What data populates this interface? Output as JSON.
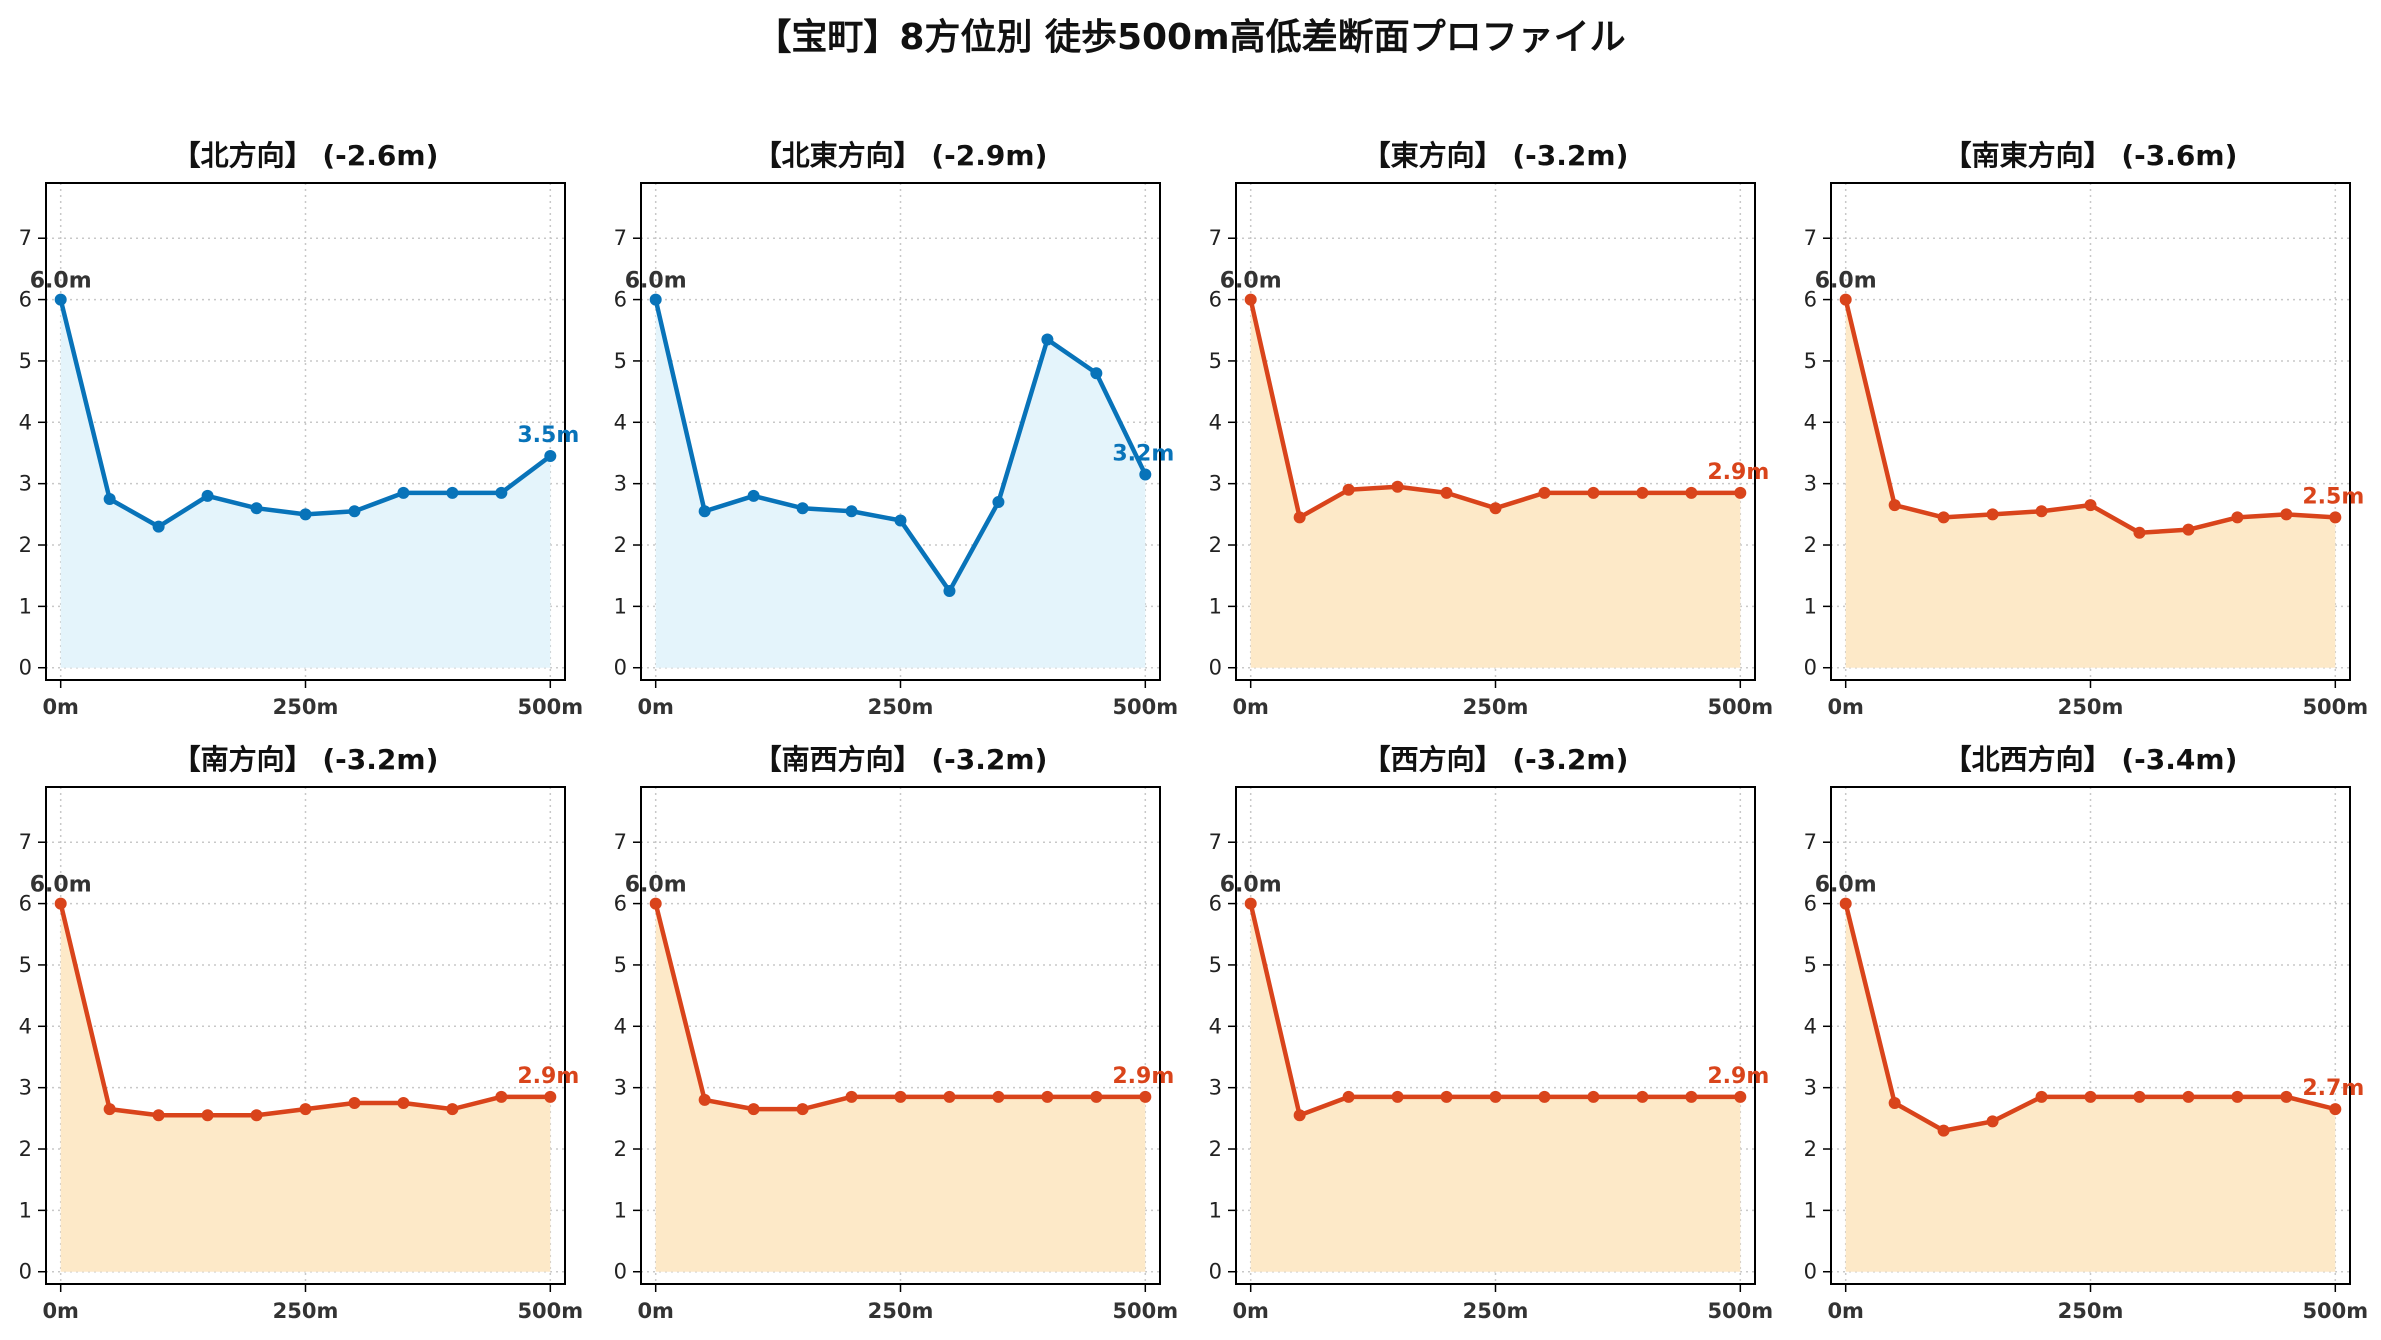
{
  "title": "【宝町】8方位別 徒歩500m高低差断面プロファイル",
  "colors": {
    "uphill_line": "#0873b9",
    "uphill_fill": "#e4f4fb",
    "downhill_line": "#d9441b",
    "downhill_fill": "#fde9c8",
    "start_label": "#333333",
    "grid": "#c8c8c8"
  },
  "chart_data": [
    {
      "type": "area",
      "title": "【北方向】 (-2.6m)",
      "color_scheme": "blue",
      "x": [
        0,
        50,
        100,
        150,
        200,
        250,
        300,
        350,
        400,
        450,
        500
      ],
      "y": [
        6.0,
        2.75,
        2.3,
        2.8,
        2.6,
        2.5,
        2.55,
        2.85,
        2.85,
        2.85,
        3.45
      ],
      "start_label": "6.0m",
      "end_label": "3.5m",
      "xlim": [
        -15,
        515
      ],
      "ylim": [
        -0.2,
        7.9
      ],
      "xticks": [
        "0m",
        "250m",
        "500m"
      ],
      "yticks": [
        0,
        1,
        2,
        3,
        4,
        5,
        6,
        7
      ],
      "grid": true
    },
    {
      "type": "area",
      "title": "【北東方向】 (-2.9m)",
      "color_scheme": "blue",
      "x": [
        0,
        50,
        100,
        150,
        200,
        250,
        300,
        350,
        400,
        450,
        500
      ],
      "y": [
        6.0,
        2.55,
        2.8,
        2.6,
        2.55,
        2.4,
        1.25,
        2.7,
        5.35,
        4.8,
        3.15
      ],
      "start_label": "6.0m",
      "end_label": "3.2m",
      "xlim": [
        -15,
        515
      ],
      "ylim": [
        -0.2,
        7.9
      ],
      "xticks": [
        "0m",
        "250m",
        "500m"
      ],
      "yticks": [
        0,
        1,
        2,
        3,
        4,
        5,
        6,
        7
      ],
      "grid": true
    },
    {
      "type": "area",
      "title": "【東方向】 (-3.2m)",
      "color_scheme": "orange",
      "x": [
        0,
        50,
        100,
        150,
        200,
        250,
        300,
        350,
        400,
        450,
        500
      ],
      "y": [
        6.0,
        2.45,
        2.9,
        2.95,
        2.85,
        2.6,
        2.85,
        2.85,
        2.85,
        2.85,
        2.85
      ],
      "start_label": "6.0m",
      "end_label": "2.9m",
      "xlim": [
        -15,
        515
      ],
      "ylim": [
        -0.2,
        7.9
      ],
      "xticks": [
        "0m",
        "250m",
        "500m"
      ],
      "yticks": [
        0,
        1,
        2,
        3,
        4,
        5,
        6,
        7
      ],
      "grid": true
    },
    {
      "type": "area",
      "title": "【南東方向】 (-3.6m)",
      "color_scheme": "orange",
      "x": [
        0,
        50,
        100,
        150,
        200,
        250,
        300,
        350,
        400,
        450,
        500
      ],
      "y": [
        6.0,
        2.65,
        2.45,
        2.5,
        2.55,
        2.65,
        2.2,
        2.25,
        2.45,
        2.5,
        2.45
      ],
      "start_label": "6.0m",
      "end_label": "2.5m",
      "xlim": [
        -15,
        515
      ],
      "ylim": [
        -0.2,
        7.9
      ],
      "xticks": [
        "0m",
        "250m",
        "500m"
      ],
      "yticks": [
        0,
        1,
        2,
        3,
        4,
        5,
        6,
        7
      ],
      "grid": true
    },
    {
      "type": "area",
      "title": "【南方向】 (-3.2m)",
      "color_scheme": "orange",
      "x": [
        0,
        50,
        100,
        150,
        200,
        250,
        300,
        350,
        400,
        450,
        500
      ],
      "y": [
        6.0,
        2.65,
        2.55,
        2.55,
        2.55,
        2.65,
        2.75,
        2.75,
        2.65,
        2.85,
        2.85
      ],
      "start_label": "6.0m",
      "end_label": "2.9m",
      "xlim": [
        -15,
        515
      ],
      "ylim": [
        -0.2,
        7.9
      ],
      "xticks": [
        "0m",
        "250m",
        "500m"
      ],
      "yticks": [
        0,
        1,
        2,
        3,
        4,
        5,
        6,
        7
      ],
      "grid": true
    },
    {
      "type": "area",
      "title": "【南西方向】 (-3.2m)",
      "color_scheme": "orange",
      "x": [
        0,
        50,
        100,
        150,
        200,
        250,
        300,
        350,
        400,
        450,
        500
      ],
      "y": [
        6.0,
        2.8,
        2.65,
        2.65,
        2.85,
        2.85,
        2.85,
        2.85,
        2.85,
        2.85,
        2.85
      ],
      "start_label": "6.0m",
      "end_label": "2.9m",
      "xlim": [
        -15,
        515
      ],
      "ylim": [
        -0.2,
        7.9
      ],
      "xticks": [
        "0m",
        "250m",
        "500m"
      ],
      "yticks": [
        0,
        1,
        2,
        3,
        4,
        5,
        6,
        7
      ],
      "grid": true
    },
    {
      "type": "area",
      "title": "【西方向】 (-3.2m)",
      "color_scheme": "orange",
      "x": [
        0,
        50,
        100,
        150,
        200,
        250,
        300,
        350,
        400,
        450,
        500
      ],
      "y": [
        6.0,
        2.55,
        2.85,
        2.85,
        2.85,
        2.85,
        2.85,
        2.85,
        2.85,
        2.85,
        2.85
      ],
      "start_label": "6.0m",
      "end_label": "2.9m",
      "xlim": [
        -15,
        515
      ],
      "ylim": [
        -0.2,
        7.9
      ],
      "xticks": [
        "0m",
        "250m",
        "500m"
      ],
      "yticks": [
        0,
        1,
        2,
        3,
        4,
        5,
        6,
        7
      ],
      "grid": true
    },
    {
      "type": "area",
      "title": "【北西方向】 (-3.4m)",
      "color_scheme": "orange",
      "x": [
        0,
        50,
        100,
        150,
        200,
        250,
        300,
        350,
        400,
        450,
        500
      ],
      "y": [
        6.0,
        2.75,
        2.3,
        2.45,
        2.85,
        2.85,
        2.85,
        2.85,
        2.85,
        2.85,
        2.65
      ],
      "start_label": "6.0m",
      "end_label": "2.7m",
      "xlim": [
        -15,
        515
      ],
      "ylim": [
        -0.2,
        7.9
      ],
      "xticks": [
        "0m",
        "250m",
        "500m"
      ],
      "yticks": [
        0,
        1,
        2,
        3,
        4,
        5,
        6,
        7
      ],
      "grid": true
    }
  ]
}
